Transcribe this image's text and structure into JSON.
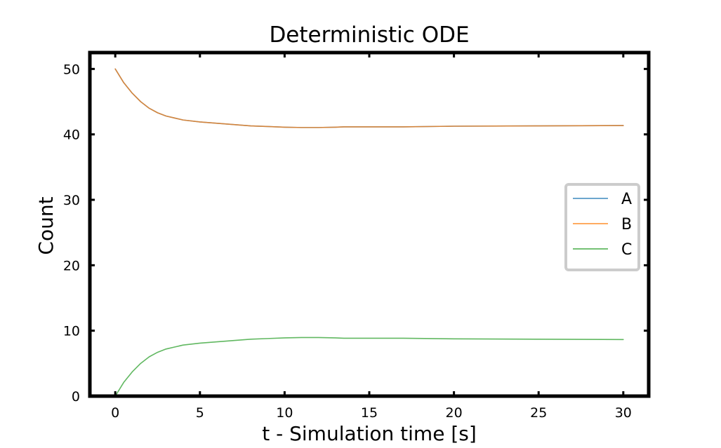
{
  "chart_data": {
    "type": "line",
    "title": "Deterministic ODE",
    "xlabel": "t - Simulation time [s]",
    "ylabel": "Count",
    "xlim": [
      -1.5,
      31.5
    ],
    "ylim": [
      0,
      52.5
    ],
    "xticks": [
      0,
      5,
      10,
      15,
      20,
      25,
      30
    ],
    "yticks": [
      0,
      10,
      20,
      30,
      40,
      50
    ],
    "grid": false,
    "legend": {
      "placement": "center-right",
      "entries": [
        "A",
        "B",
        "C"
      ]
    },
    "x": [
      0,
      0.5,
      1,
      1.5,
      2,
      2.5,
      3,
      3.5,
      4,
      5,
      6,
      7,
      8,
      9,
      10,
      11,
      12,
      13,
      13.5,
      15,
      17,
      20,
      25,
      30
    ],
    "series": [
      {
        "name": "A",
        "color": "#1f77b4",
        "values": [
          50,
          47.9,
          46.3,
          45.0,
          44.0,
          43.3,
          42.8,
          42.5,
          42.2,
          41.9,
          41.7,
          41.5,
          41.3,
          41.2,
          41.1,
          41.05,
          41.05,
          41.1,
          41.15,
          41.15,
          41.15,
          41.25,
          41.3,
          41.35
        ]
      },
      {
        "name": "B",
        "color": "#ff7f0e",
        "values": [
          50,
          47.9,
          46.3,
          45.0,
          44.0,
          43.3,
          42.8,
          42.5,
          42.2,
          41.9,
          41.7,
          41.5,
          41.3,
          41.2,
          41.1,
          41.05,
          41.05,
          41.1,
          41.15,
          41.15,
          41.15,
          41.25,
          41.3,
          41.35
        ]
      },
      {
        "name": "C",
        "color": "#2ca02c",
        "values": [
          0,
          2.1,
          3.7,
          5.0,
          6.0,
          6.7,
          7.2,
          7.5,
          7.8,
          8.1,
          8.3,
          8.5,
          8.7,
          8.8,
          8.9,
          8.95,
          8.95,
          8.9,
          8.85,
          8.85,
          8.85,
          8.75,
          8.7,
          8.65
        ]
      }
    ]
  }
}
